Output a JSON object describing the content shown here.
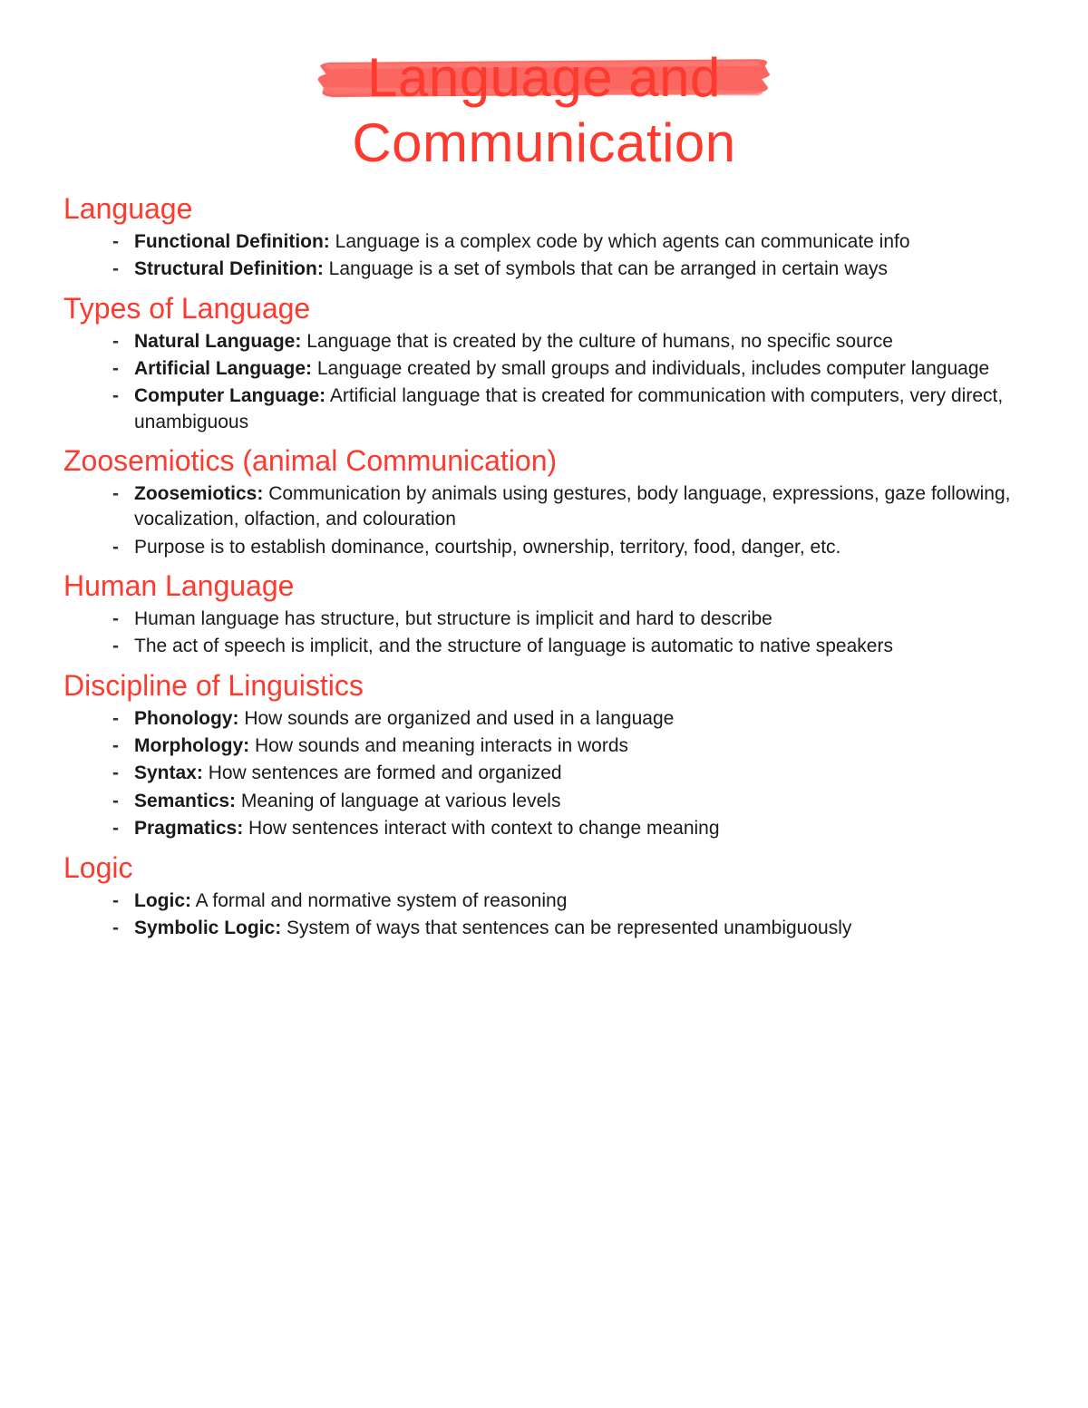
{
  "colors": {
    "accent": "#fd3a2d",
    "text": "#1a1a1a",
    "brush_fill": "#fb5a53",
    "brush_fill_light": "#fc7a74",
    "background": "#ffffff"
  },
  "typography": {
    "title_fontsize": 60,
    "heading_fontsize": 32,
    "body_fontsize": 21,
    "font_family": "Verdana"
  },
  "title": {
    "line1": "Language and",
    "line2": "Communication"
  },
  "sections": [
    {
      "heading": "Language",
      "items": [
        {
          "term": "Functional Definition:",
          "text": " Language is a complex code by which agents can communicate info"
        },
        {
          "term": "Structural Definition:",
          "text": " Language is a set of symbols that can be arranged in certain ways"
        }
      ]
    },
    {
      "heading": "Types of Language",
      "items": [
        {
          "term": "Natural Language:",
          "text": " Language that is created by the culture of humans, no specific source"
        },
        {
          "term": "Artificial Language:",
          "text": " Language created by small groups and individuals, includes computer language"
        },
        {
          "term": "Computer Language:",
          "text": " Artificial language that is created for communication with computers, very direct, unambiguous"
        }
      ]
    },
    {
      "heading": "Zoosemiotics (animal Communication)",
      "items": [
        {
          "term": "Zoosemiotics:",
          "text": " Communication by animals using gestures, body language, expressions, gaze following, vocalization, olfaction, and colouration"
        },
        {
          "term": "",
          "text": "Purpose is to establish dominance, courtship, ownership, territory, food, danger, etc."
        }
      ]
    },
    {
      "heading": "Human Language",
      "items": [
        {
          "term": "",
          "text": "Human language has structure, but structure is implicit and hard to describe"
        },
        {
          "term": "",
          "text": "The act of speech is implicit, and the structure of language is automatic to native speakers"
        }
      ]
    },
    {
      "heading": "Discipline of Linguistics",
      "items": [
        {
          "term": "Phonology:",
          "text": " How sounds are organized and used in a language"
        },
        {
          "term": "Morphology:",
          "text": " How sounds and meaning interacts in words"
        },
        {
          "term": "Syntax:",
          "text": " How sentences are formed and organized"
        },
        {
          "term": "Semantics:",
          "text": " Meaning of language at various levels"
        },
        {
          "term": "Pragmatics:",
          "text": " How sentences interact with context to change meaning"
        }
      ]
    },
    {
      "heading": "Logic",
      "items": [
        {
          "term": "Logic:",
          "text": " A formal and normative system of reasoning"
        },
        {
          "term": "Symbolic Logic:",
          "text": " System of ways that sentences can be represented unambiguously"
        }
      ]
    }
  ]
}
